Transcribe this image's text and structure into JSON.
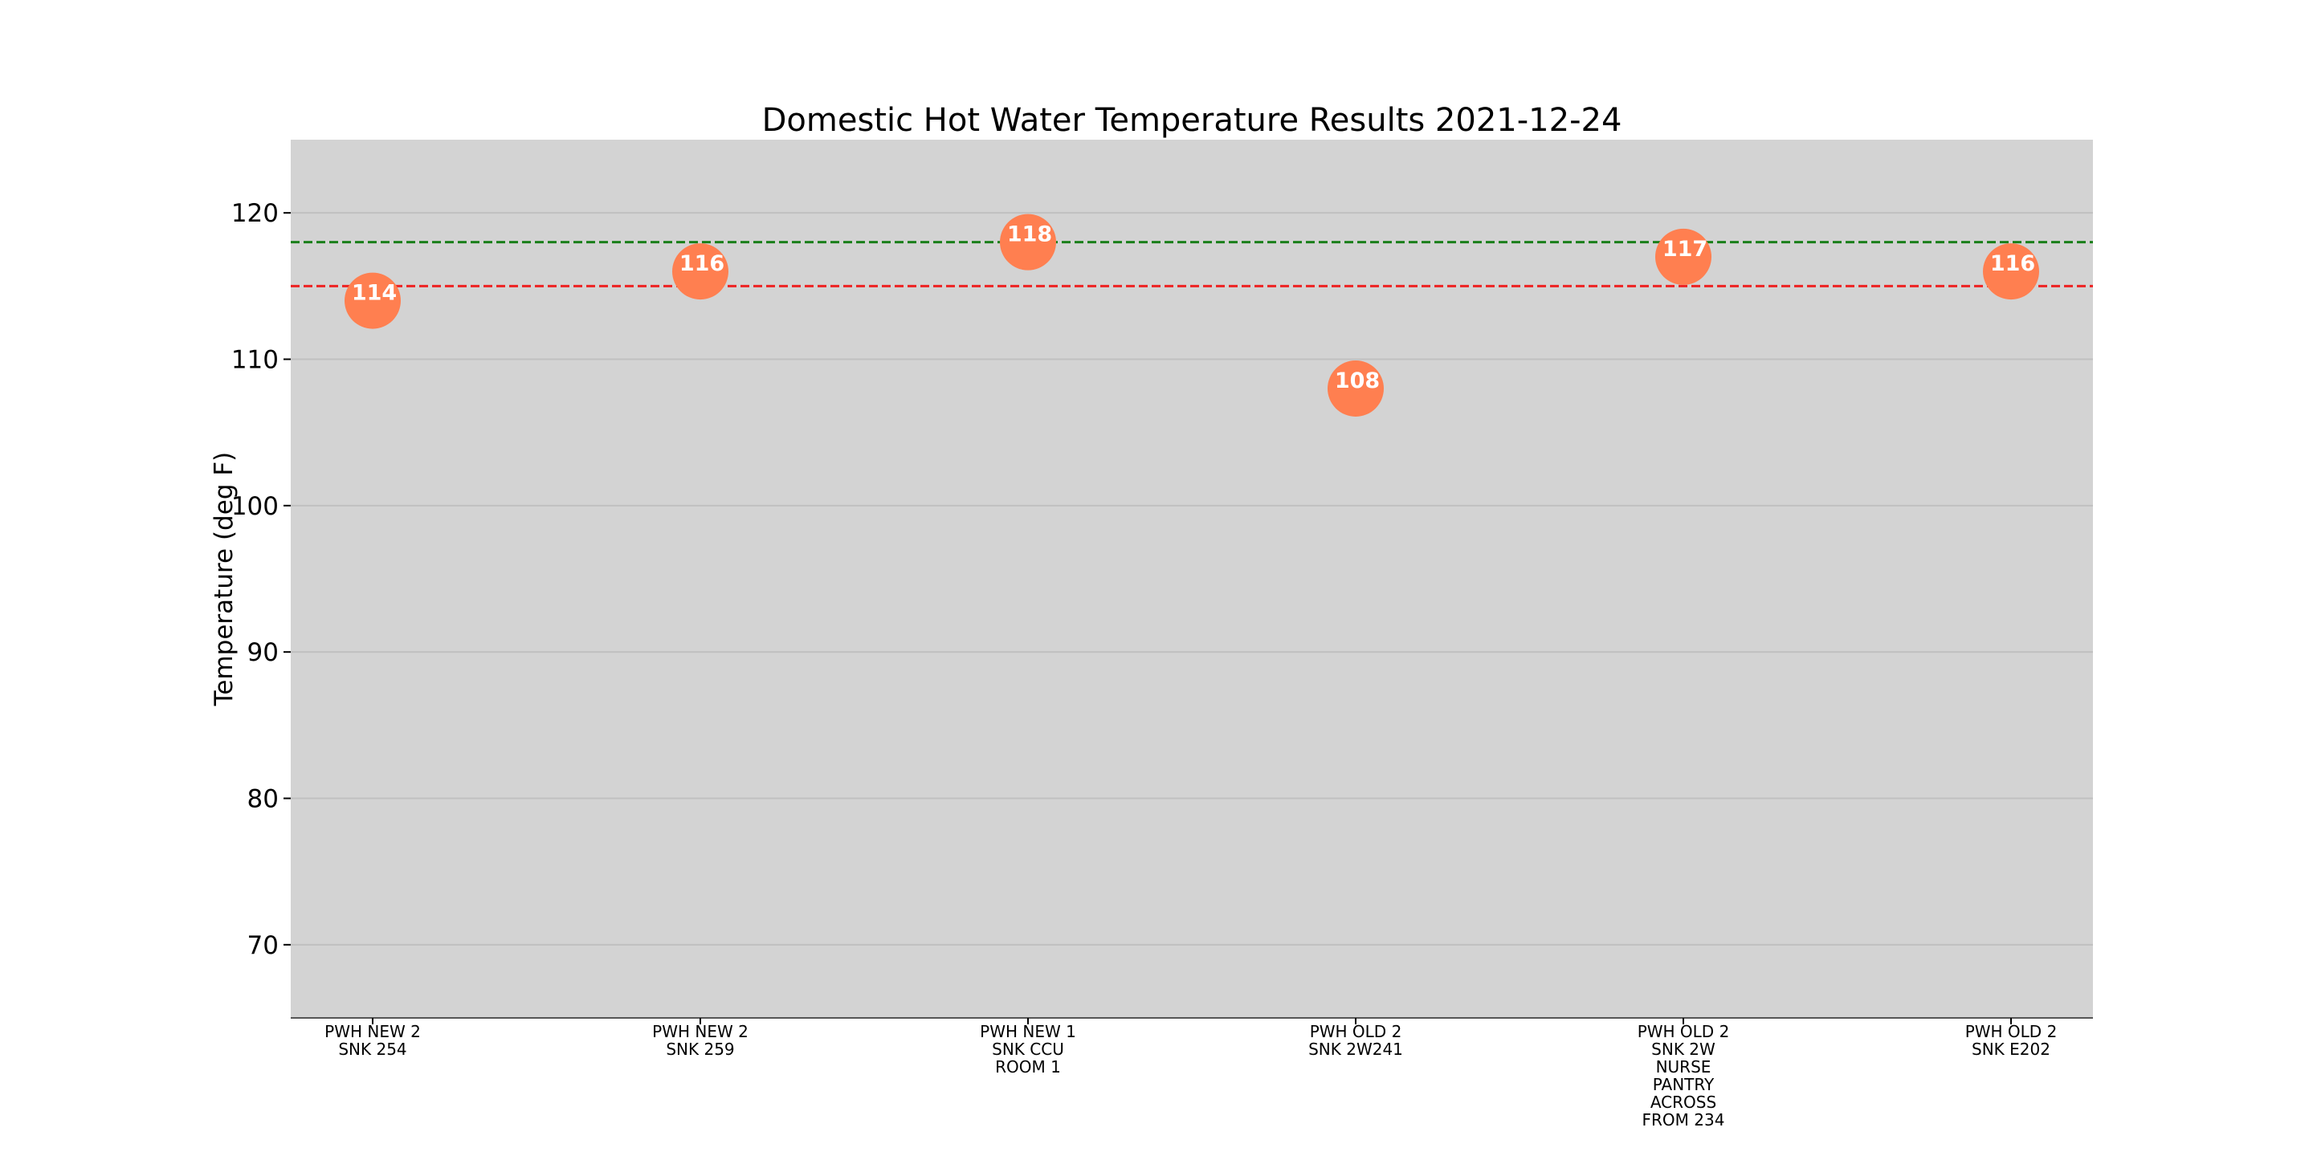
{
  "chart_data": {
    "type": "scatter",
    "title": "Domestic Hot Water Temperature Results 2021-12-24",
    "xlabel": "",
    "ylabel": "Temperature (deg F)",
    "ylim": [
      65,
      125
    ],
    "yticks": [
      70,
      80,
      90,
      100,
      110,
      120
    ],
    "grid": "y",
    "categories": [
      [
        "PWH NEW 2",
        "SNK 254"
      ],
      [
        "PWH NEW 2",
        "SNK 259"
      ],
      [
        "PWH NEW 1",
        "SNK CCU",
        "ROOM 1"
      ],
      [
        "PWH OLD 2",
        "SNK 2W241"
      ],
      [
        "PWH OLD 2",
        "SNK 2W",
        "NURSE",
        "PANTRY",
        "ACROSS",
        "FROM 234"
      ],
      [
        "PWH OLD 2",
        "SNK E202"
      ]
    ],
    "values": [
      114,
      116,
      118,
      108,
      117,
      116
    ],
    "data_labels": [
      "114",
      "116",
      "118",
      "108",
      "117",
      "116"
    ],
    "reference_lines": [
      {
        "value": 118,
        "color": "#1a7f1a",
        "style": "dashed"
      },
      {
        "value": 115,
        "color": "#ee2222",
        "style": "dashed"
      }
    ],
    "colors": {
      "marker": "#ff7f50",
      "plot_background": "#d3d3d3",
      "gridline": "#c0c0c0"
    }
  }
}
